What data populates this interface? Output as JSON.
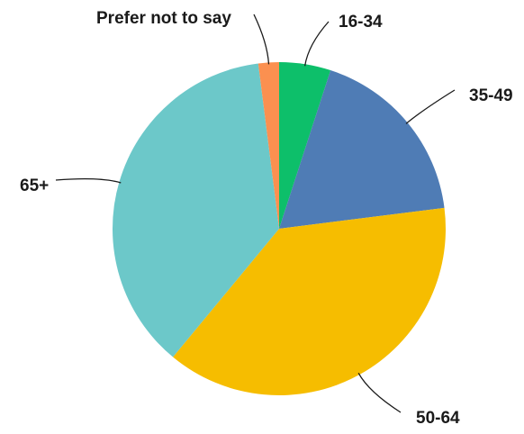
{
  "chart_data": {
    "type": "pie",
    "title": "",
    "legend": "none",
    "slices": [
      {
        "label": "16-34",
        "value": 5,
        "color": "#0dbf6a"
      },
      {
        "label": "35-49",
        "value": 18,
        "color": "#4f7cb5"
      },
      {
        "label": "50-64",
        "value": 38,
        "color": "#f6bd00"
      },
      {
        "label": "65+",
        "value": 37,
        "color": "#6cc8c9"
      },
      {
        "label": "Prefer not to say",
        "value": 2,
        "color": "#fb9050"
      }
    ]
  }
}
